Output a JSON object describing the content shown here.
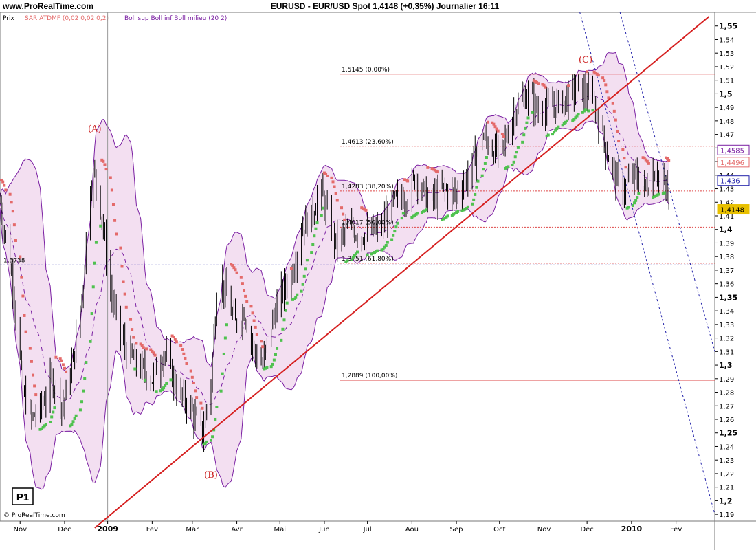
{
  "header": {
    "site": "www.ProRealTime.com",
    "title": "EURUSD - EUR/USD Spot    1,4148 (+0,35%)    Journalier  16:11"
  },
  "indicators": {
    "price_label": "Prix",
    "sar_label": "SAR ATDMF (0,02 0,02 0,2)",
    "boll_label": "Boll sup Boll inf Boll milieu (20 2)"
  },
  "panel_label": "P1",
  "copyright": "© ProRealTime.com",
  "colors": {
    "sar_red": "#e46a6a",
    "sar_green": "#4fc24f",
    "boll_line": "#7a1fa2",
    "boll_fill": "#f3dff1",
    "trend_red": "#d62020",
    "fib_red": "#d44",
    "channel_blue": "#2222aa"
  },
  "chart_data": {
    "type": "candlestick",
    "symbol": "EURUSD",
    "ylim": [
      1.185,
      1.56
    ],
    "yticks": [
      "1,55",
      "1,54",
      "1,53",
      "1,52",
      "1,51",
      "1,5",
      "1,49",
      "1,48",
      "1,47",
      "1,46",
      "1,45",
      "1,44",
      "1,43",
      "1,42",
      "1,41",
      "1,4",
      "1,39",
      "1,38",
      "1,37",
      "1,36",
      "1,35",
      "1,34",
      "1,33",
      "1,32",
      "1,31",
      "1,3",
      "1,29",
      "1,28",
      "1,27",
      "1,26",
      "1,25",
      "1,24",
      "1,23",
      "1,22",
      "1,21",
      "1,2",
      "1,19"
    ],
    "ytick_values": [
      1.55,
      1.54,
      1.53,
      1.52,
      1.51,
      1.5,
      1.49,
      1.48,
      1.47,
      1.46,
      1.45,
      1.44,
      1.43,
      1.42,
      1.41,
      1.4,
      1.39,
      1.38,
      1.37,
      1.36,
      1.35,
      1.34,
      1.33,
      1.32,
      1.31,
      1.3,
      1.29,
      1.28,
      1.27,
      1.26,
      1.25,
      1.24,
      1.23,
      1.22,
      1.21,
      1.2,
      1.19
    ],
    "xticks": [
      "Nov",
      "Dec",
      "2009",
      "Fev",
      "Mar",
      "Avr",
      "Mai",
      "Jun",
      "Jul",
      "Aou",
      "Sep",
      "Oct",
      "Nov",
      "Dec",
      "2010",
      "Fev"
    ],
    "xtick_days": [
      0,
      31,
      61,
      92,
      120,
      151,
      181,
      212,
      242,
      273,
      304,
      334,
      365,
      395,
      426,
      457
    ],
    "x_range_days": [
      -14,
      484
    ],
    "fib_levels": [
      {
        "label": "1,5145 (0,00%)",
        "value": 1.5145
      },
      {
        "label": "1,4613 (23,60%)",
        "value": 1.4613
      },
      {
        "label": "1,4283 (38,20%)",
        "value": 1.4283
      },
      {
        "label": "1,4017 (50,00%)",
        "value": 1.4017
      },
      {
        "label": "1,3751 (61,80%)",
        "value": 1.3751
      },
      {
        "label": "1,2889 (100,00%)",
        "value": 1.2889
      }
    ],
    "hline_label": {
      "label": "1,3738",
      "value": 1.3738
    },
    "annotations": [
      {
        "label": "(A)",
        "day": 52,
        "value": 1.472
      },
      {
        "label": "(B)",
        "day": 133,
        "value": 1.217
      },
      {
        "label": "(C)",
        "day": 394,
        "value": 1.523
      }
    ],
    "price_tags": [
      {
        "label": "1,4585",
        "value": 1.4585,
        "color": "#7a1fa2"
      },
      {
        "label": "1,4496",
        "value": 1.4496,
        "color": "#e46a6a"
      },
      {
        "label": "1,436",
        "value": 1.436,
        "color": "#2222aa"
      },
      {
        "label": "1,4148",
        "value": 1.4148,
        "color": "#e8c000"
      }
    ],
    "trendline": {
      "from": {
        "day": 52,
        "value": 1.18
      },
      "to": {
        "day": 480,
        "value": 1.557
      }
    },
    "channel_lines": [
      {
        "from": {
          "day": 390,
          "value": 1.56
        },
        "to": {
          "day": 484,
          "value": 1.19
        }
      },
      {
        "from": {
          "day": 418,
          "value": 1.56
        },
        "to": {
          "day": 484,
          "value": 1.31
        }
      }
    ],
    "vline_day": 61,
    "close_path": [
      [
        -14,
        1.42
      ],
      [
        -5,
        1.36
      ],
      [
        2,
        1.28
      ],
      [
        8,
        1.26
      ],
      [
        15,
        1.27
      ],
      [
        22,
        1.29
      ],
      [
        30,
        1.27
      ],
      [
        38,
        1.31
      ],
      [
        44,
        1.36
      ],
      [
        48,
        1.43
      ],
      [
        52,
        1.44
      ],
      [
        57,
        1.41
      ],
      [
        62,
        1.36
      ],
      [
        68,
        1.33
      ],
      [
        74,
        1.31
      ],
      [
        82,
        1.3
      ],
      [
        92,
        1.29
      ],
      [
        100,
        1.31
      ],
      [
        110,
        1.28
      ],
      [
        118,
        1.27
      ],
      [
        122,
        1.26
      ],
      [
        127,
        1.25
      ],
      [
        133,
        1.29
      ],
      [
        138,
        1.37
      ],
      [
        144,
        1.35
      ],
      [
        150,
        1.33
      ],
      [
        156,
        1.34
      ],
      [
        163,
        1.31
      ],
      [
        169,
        1.3
      ],
      [
        175,
        1.33
      ],
      [
        181,
        1.35
      ],
      [
        190,
        1.37
      ],
      [
        196,
        1.4
      ],
      [
        203,
        1.41
      ],
      [
        209,
        1.43
      ],
      [
        214,
        1.41
      ],
      [
        220,
        1.39
      ],
      [
        230,
        1.4
      ],
      [
        240,
        1.395
      ],
      [
        250,
        1.4
      ],
      [
        260,
        1.42
      ],
      [
        270,
        1.425
      ],
      [
        276,
        1.44
      ],
      [
        285,
        1.42
      ],
      [
        295,
        1.43
      ],
      [
        303,
        1.425
      ],
      [
        312,
        1.44
      ],
      [
        322,
        1.47
      ],
      [
        328,
        1.46
      ],
      [
        335,
        1.455
      ],
      [
        345,
        1.49
      ],
      [
        354,
        1.5
      ],
      [
        362,
        1.485
      ],
      [
        370,
        1.49
      ],
      [
        380,
        1.495
      ],
      [
        388,
        1.505
      ],
      [
        395,
        1.5
      ],
      [
        402,
        1.485
      ],
      [
        408,
        1.46
      ],
      [
        414,
        1.44
      ],
      [
        420,
        1.43
      ],
      [
        428,
        1.44
      ],
      [
        436,
        1.43
      ],
      [
        443,
        1.445
      ],
      [
        450,
        1.43
      ],
      [
        453,
        1.4148
      ]
    ]
  }
}
